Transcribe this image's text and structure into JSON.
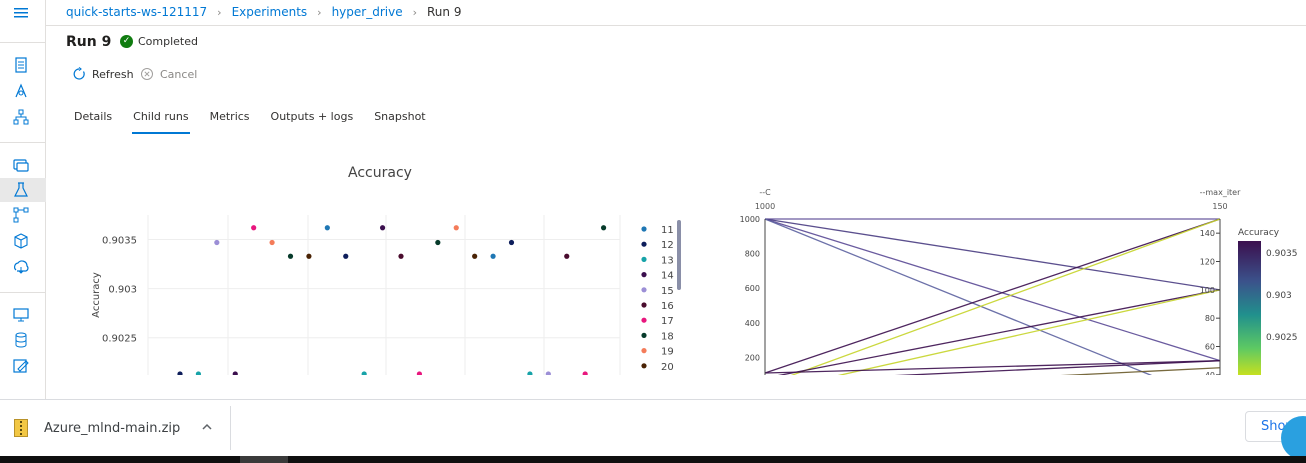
{
  "breadcrumb": {
    "items": [
      "quick-starts-ws-121117",
      "Experiments",
      "hyper_drive"
    ],
    "current": "Run 9"
  },
  "run": {
    "title": "Run 9",
    "status": "Completed"
  },
  "commands": {
    "refresh": "Refresh",
    "cancel": "Cancel"
  },
  "tabs": [
    "Details",
    "Child runs",
    "Metrics",
    "Outputs + logs",
    "Snapshot"
  ],
  "active_tab": "Child runs",
  "rail_icons": [
    "menu-icon",
    "notebook-icon",
    "automl-icon",
    "designer-icon",
    "datasets-icon",
    "experiments-icon",
    "pipelines-icon",
    "models-icon",
    "endpoints-icon",
    "compute-icon",
    "datastores-icon",
    "labeling-icon"
  ],
  "chart_data": [
    {
      "type": "scatter",
      "title": "Accuracy",
      "xlabel": "",
      "ylabel": "Accuracy",
      "yticks": [
        "0.9035",
        "0.903",
        "0.9025"
      ],
      "ylim": [
        0.90212,
        0.90375
      ],
      "legend_labels": [
        "11",
        "12",
        "13",
        "14",
        "15",
        "16",
        "17",
        "18",
        "19",
        "20"
      ],
      "legend_colors": [
        "#1f77b4",
        "#0e1e5b",
        "#17a3a8",
        "#3b0f4e",
        "#9c8fd6",
        "#4a0c2e",
        "#e8177e",
        "#073b2b",
        "#f47c5a",
        "#4a2305"
      ],
      "points": [
        {
          "x": 1,
          "y": 0.90213,
          "c": "#0e1e5b"
        },
        {
          "x": 2,
          "y": 0.90213,
          "c": "#17a3a8"
        },
        {
          "x": 3,
          "y": 0.90347,
          "c": "#9c8fd6"
        },
        {
          "x": 4,
          "y": 0.90213,
          "c": "#3b0f4e"
        },
        {
          "x": 5,
          "y": 0.90362,
          "c": "#e8177e"
        },
        {
          "x": 6,
          "y": 0.90347,
          "c": "#f47c5a"
        },
        {
          "x": 7,
          "y": 0.90333,
          "c": "#073b2b"
        },
        {
          "x": 8,
          "y": 0.90333,
          "c": "#4a2305"
        },
        {
          "x": 9,
          "y": 0.90362,
          "c": "#1f77b4"
        },
        {
          "x": 10,
          "y": 0.90333,
          "c": "#0e1e5b"
        },
        {
          "x": 11,
          "y": 0.90213,
          "c": "#17a3a8"
        },
        {
          "x": 12,
          "y": 0.90362,
          "c": "#3b0f4e"
        },
        {
          "x": 13,
          "y": 0.90333,
          "c": "#4a0c2e"
        },
        {
          "x": 14,
          "y": 0.90213,
          "c": "#e8177e"
        },
        {
          "x": 15,
          "y": 0.90347,
          "c": "#073b2b"
        },
        {
          "x": 16,
          "y": 0.90362,
          "c": "#f47c5a"
        },
        {
          "x": 17,
          "y": 0.90333,
          "c": "#4a2305"
        },
        {
          "x": 18,
          "y": 0.90333,
          "c": "#1f77b4"
        },
        {
          "x": 19,
          "y": 0.90347,
          "c": "#0e1e5b"
        },
        {
          "x": 20,
          "y": 0.90213,
          "c": "#17a3a8"
        },
        {
          "x": 21,
          "y": 0.90213,
          "c": "#9c8fd6"
        },
        {
          "x": 22,
          "y": 0.90333,
          "c": "#4a0c2e"
        },
        {
          "x": 23,
          "y": 0.90213,
          "c": "#e8177e"
        },
        {
          "x": 24,
          "y": 0.90362,
          "c": "#073b2b"
        }
      ]
    },
    {
      "type": "parallel-coordinates",
      "axes": [
        {
          "label": "--C",
          "range_label": "1000",
          "ticks": [
            "1000",
            "800",
            "600",
            "400",
            "200"
          ],
          "ylim": [
            110,
            1000
          ]
        },
        {
          "label": "--max_iter",
          "range_label": "150",
          "ticks": [
            "140",
            "120",
            "100",
            "80",
            "60",
            "40"
          ],
          "ylim": [
            37,
            150
          ]
        }
      ],
      "colorbar": {
        "title": "Accuracy",
        "ticks": [
          "0.9035",
          "0.903",
          "0.9025"
        ]
      },
      "lines": [
        {
          "c": 1000,
          "m": 150,
          "color": "#5a4a95"
        },
        {
          "c": 1000,
          "m": 100,
          "color": "#4a3d82"
        },
        {
          "c": 1000,
          "m": 50,
          "color": "#5a4a95"
        },
        {
          "c": 1000,
          "m": 20,
          "color": "#5d62a0"
        },
        {
          "c": 110,
          "m": 150,
          "color": "#3b0f4e"
        },
        {
          "c": 40,
          "m": 150,
          "color": "#c6d42a"
        },
        {
          "c": 80,
          "m": 100,
          "color": "#3b0f4e"
        },
        {
          "c": 0,
          "m": 100,
          "color": "#c6d42a"
        },
        {
          "c": 110,
          "m": 50,
          "color": "#3b0f4e"
        },
        {
          "c": 60,
          "m": 50,
          "color": "#3b0f4e"
        },
        {
          "c": 10,
          "m": 45,
          "color": "#6a5a2a"
        }
      ]
    }
  ],
  "downloads": {
    "file": "Azure_mlnd-main.zip",
    "show_all": "Show"
  }
}
